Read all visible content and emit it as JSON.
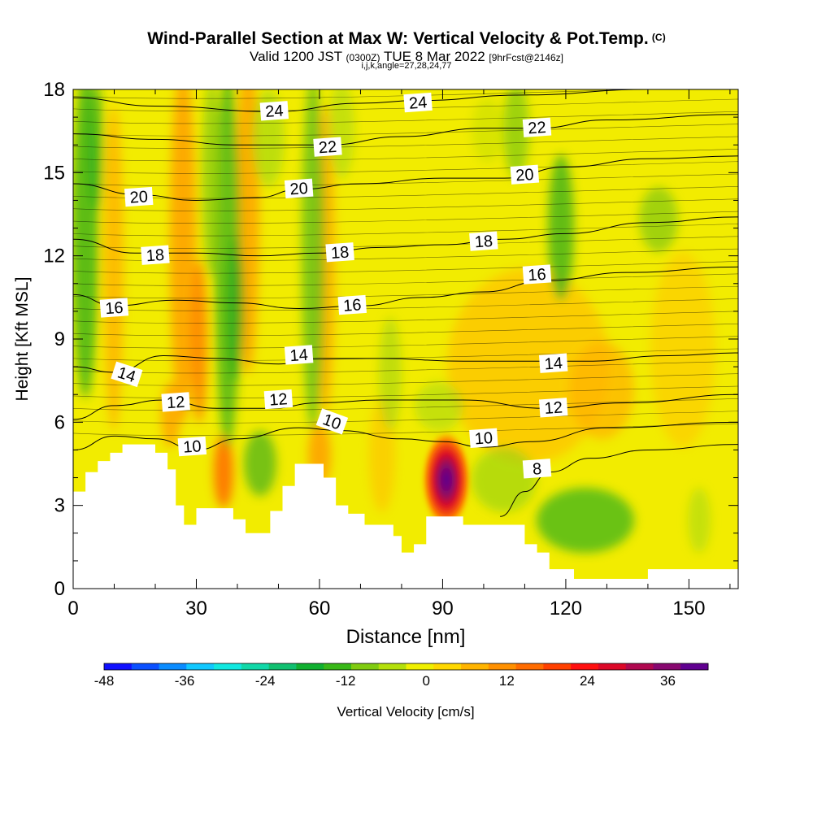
{
  "header": {
    "title": "Wind-Parallel Section at Max W: Vertical Velocity & Pot.Temp.",
    "copyright": "(C)",
    "valid_prefix": "Valid 1200 JST",
    "valid_utc": "(0300Z)",
    "valid_date": "TUE 8 Mar 2022",
    "forecast": "[9hrFcst@2146z]",
    "grid_info": "i,j,k,angle=27,28,24,77"
  },
  "chart_data": {
    "type": "heatmap",
    "xlabel": "Distance [nm]",
    "ylabel": "Height [Kft MSL]",
    "xlim": [
      0,
      162
    ],
    "ylim": [
      0,
      18
    ],
    "x_ticks": [
      0,
      30,
      60,
      90,
      120,
      150
    ],
    "y_ticks": [
      0,
      3,
      6,
      9,
      12,
      15,
      18
    ],
    "colorbar": {
      "label": "Vertical Velocity [cm/s]",
      "range": [
        -48,
        42
      ],
      "step": 4,
      "tick_values": [
        -48,
        -36,
        -24,
        -12,
        0,
        12,
        24,
        36
      ],
      "colors": [
        "#1010ff",
        "#0a50ff",
        "#0a8cff",
        "#10c8ff",
        "#10e8e0",
        "#10d8a8",
        "#10c070",
        "#10b030",
        "#38b818",
        "#80cc10",
        "#b4e00a",
        "#f0f000",
        "#ffd800",
        "#ffb400",
        "#ff9000",
        "#ff6c00",
        "#ff4000",
        "#ff1010",
        "#dc0828",
        "#b00850",
        "#880870",
        "#600090"
      ]
    },
    "terrain": [
      [
        0,
        3.5
      ],
      [
        3,
        3.5
      ],
      [
        3,
        4.2
      ],
      [
        6,
        4.2
      ],
      [
        6,
        4.6
      ],
      [
        9,
        4.6
      ],
      [
        9,
        4.9
      ],
      [
        12,
        4.9
      ],
      [
        12,
        5.2
      ],
      [
        20,
        5.2
      ],
      [
        20,
        4.9
      ],
      [
        23,
        4.9
      ],
      [
        23,
        4.3
      ],
      [
        25,
        4.3
      ],
      [
        25,
        3.0
      ],
      [
        27,
        3.0
      ],
      [
        27,
        2.3
      ],
      [
        30,
        2.3
      ],
      [
        30,
        2.9
      ],
      [
        39,
        2.9
      ],
      [
        39,
        2.5
      ],
      [
        42,
        2.5
      ],
      [
        42,
        2.0
      ],
      [
        48,
        2.0
      ],
      [
        48,
        2.8
      ],
      [
        51,
        2.8
      ],
      [
        51,
        3.7
      ],
      [
        54,
        3.7
      ],
      [
        54,
        4.5
      ],
      [
        61,
        4.5
      ],
      [
        61,
        4.0
      ],
      [
        64,
        4.0
      ],
      [
        64,
        3.0
      ],
      [
        67,
        3.0
      ],
      [
        67,
        2.7
      ],
      [
        71,
        2.7
      ],
      [
        71,
        2.3
      ],
      [
        78,
        2.3
      ],
      [
        78,
        1.9
      ],
      [
        80,
        1.9
      ],
      [
        80,
        1.3
      ],
      [
        83,
        1.3
      ],
      [
        83,
        1.6
      ],
      [
        86,
        1.6
      ],
      [
        86,
        2.6
      ],
      [
        95,
        2.6
      ],
      [
        95,
        2.3
      ],
      [
        110,
        2.3
      ],
      [
        110,
        1.6
      ],
      [
        113,
        1.6
      ],
      [
        113,
        1.3
      ],
      [
        116,
        1.3
      ],
      [
        116,
        0.7
      ],
      [
        122,
        0.7
      ],
      [
        122,
        0.35
      ],
      [
        140,
        0.35
      ],
      [
        140,
        0.7
      ],
      [
        162,
        0.7
      ]
    ],
    "theta_contours": [
      {
        "label": "8",
        "label_at": [
          113,
          4.3
        ],
        "points": [
          [
            104,
            2.6
          ],
          [
            110,
            3.5
          ],
          [
            116,
            4.2
          ],
          [
            126,
            4.7
          ],
          [
            140,
            5.0
          ],
          [
            162,
            5.2
          ]
        ]
      },
      {
        "label": "10",
        "label_at": [
          29,
          5.1
        ],
        "points": [
          [
            0,
            5.0
          ],
          [
            10,
            5.5
          ],
          [
            20,
            5.4
          ],
          [
            30,
            5.0
          ],
          [
            40,
            5.4
          ],
          [
            55,
            5.8
          ],
          [
            65,
            5.7
          ],
          [
            80,
            5.4
          ],
          [
            90,
            5.3
          ],
          [
            100,
            5.1
          ],
          [
            112,
            5.3
          ],
          [
            130,
            5.8
          ],
          [
            162,
            6.0
          ]
        ]
      },
      {
        "label": "10",
        "label_at": [
          63,
          6.0
        ],
        "points": []
      },
      {
        "label": "10",
        "label_at": [
          100,
          5.4
        ],
        "points": []
      },
      {
        "label": "12",
        "label_at": [
          25,
          6.7
        ],
        "points": [
          [
            0,
            6.1
          ],
          [
            10,
            6.6
          ],
          [
            22,
            6.8
          ],
          [
            35,
            6.5
          ],
          [
            48,
            6.5
          ],
          [
            60,
            6.7
          ],
          [
            75,
            6.8
          ],
          [
            95,
            6.8
          ],
          [
            115,
            6.5
          ],
          [
            135,
            6.7
          ],
          [
            162,
            7.0
          ]
        ]
      },
      {
        "label": "12",
        "label_at": [
          50,
          6.8
        ],
        "points": []
      },
      {
        "label": "12",
        "label_at": [
          117,
          6.5
        ],
        "points": []
      },
      {
        "label": "14",
        "label_at": [
          13,
          7.7
        ],
        "points": [
          [
            0,
            8.0
          ],
          [
            10,
            7.8
          ],
          [
            22,
            8.4
          ],
          [
            35,
            8.3
          ],
          [
            50,
            8.1
          ],
          [
            60,
            8.3
          ],
          [
            75,
            8.3
          ],
          [
            95,
            8.2
          ],
          [
            110,
            8.2
          ],
          [
            125,
            8.2
          ],
          [
            145,
            8.4
          ],
          [
            162,
            8.5
          ]
        ]
      },
      {
        "label": "14",
        "label_at": [
          55,
          8.4
        ],
        "points": []
      },
      {
        "label": "14",
        "label_at": [
          117,
          8.1
        ],
        "points": []
      },
      {
        "label": "16",
        "label_at": [
          10,
          10.1
        ],
        "points": [
          [
            0,
            10.6
          ],
          [
            10,
            10.2
          ],
          [
            25,
            10.4
          ],
          [
            40,
            10.3
          ],
          [
            55,
            10.1
          ],
          [
            70,
            10.2
          ],
          [
            85,
            10.5
          ],
          [
            100,
            10.7
          ],
          [
            115,
            11.1
          ],
          [
            135,
            11.4
          ],
          [
            162,
            11.6
          ]
        ]
      },
      {
        "label": "16",
        "label_at": [
          68,
          10.2
        ],
        "points": []
      },
      {
        "label": "16",
        "label_at": [
          113,
          11.3
        ],
        "points": []
      },
      {
        "label": "18",
        "label_at": [
          20,
          12.0
        ],
        "points": [
          [
            0,
            12.6
          ],
          [
            15,
            12.1
          ],
          [
            30,
            12.1
          ],
          [
            45,
            12.0
          ],
          [
            60,
            12.1
          ],
          [
            75,
            12.3
          ],
          [
            90,
            12.4
          ],
          [
            105,
            12.6
          ],
          [
            120,
            12.8
          ],
          [
            140,
            13.2
          ],
          [
            162,
            13.4
          ]
        ]
      },
      {
        "label": "18",
        "label_at": [
          65,
          12.1
        ],
        "points": []
      },
      {
        "label": "18",
        "label_at": [
          100,
          12.5
        ],
        "points": []
      },
      {
        "label": "20",
        "label_at": [
          16,
          14.1
        ],
        "points": [
          [
            0,
            14.6
          ],
          [
            16,
            14.2
          ],
          [
            30,
            14.0
          ],
          [
            45,
            14.1
          ],
          [
            55,
            14.4
          ],
          [
            70,
            14.6
          ],
          [
            90,
            14.8
          ],
          [
            105,
            14.8
          ],
          [
            120,
            15.2
          ],
          [
            140,
            15.5
          ],
          [
            162,
            15.6
          ]
        ]
      },
      {
        "label": "20",
        "label_at": [
          55,
          14.4
        ],
        "points": []
      },
      {
        "label": "20",
        "label_at": [
          110,
          14.9
        ],
        "points": []
      },
      {
        "label": "22",
        "label_at": [
          62,
          15.9
        ],
        "points": [
          [
            0,
            16.4
          ],
          [
            20,
            16.2
          ],
          [
            40,
            16.0
          ],
          [
            62,
            16.0
          ],
          [
            80,
            16.3
          ],
          [
            100,
            16.6
          ],
          [
            113,
            16.6
          ],
          [
            130,
            16.9
          ],
          [
            162,
            17.1
          ]
        ]
      },
      {
        "label": "22",
        "label_at": [
          113,
          16.6
        ],
        "points": []
      },
      {
        "label": "24",
        "label_at": [
          49,
          17.2
        ],
        "points": [
          [
            0,
            17.7
          ],
          [
            20,
            17.4
          ],
          [
            49,
            17.2
          ],
          [
            70,
            17.5
          ],
          [
            84,
            17.6
          ],
          [
            110,
            17.8
          ],
          [
            140,
            18.0
          ],
          [
            162,
            18.0
          ]
        ]
      },
      {
        "label": "24",
        "label_at": [
          84,
          17.5
        ],
        "points": []
      }
    ]
  }
}
